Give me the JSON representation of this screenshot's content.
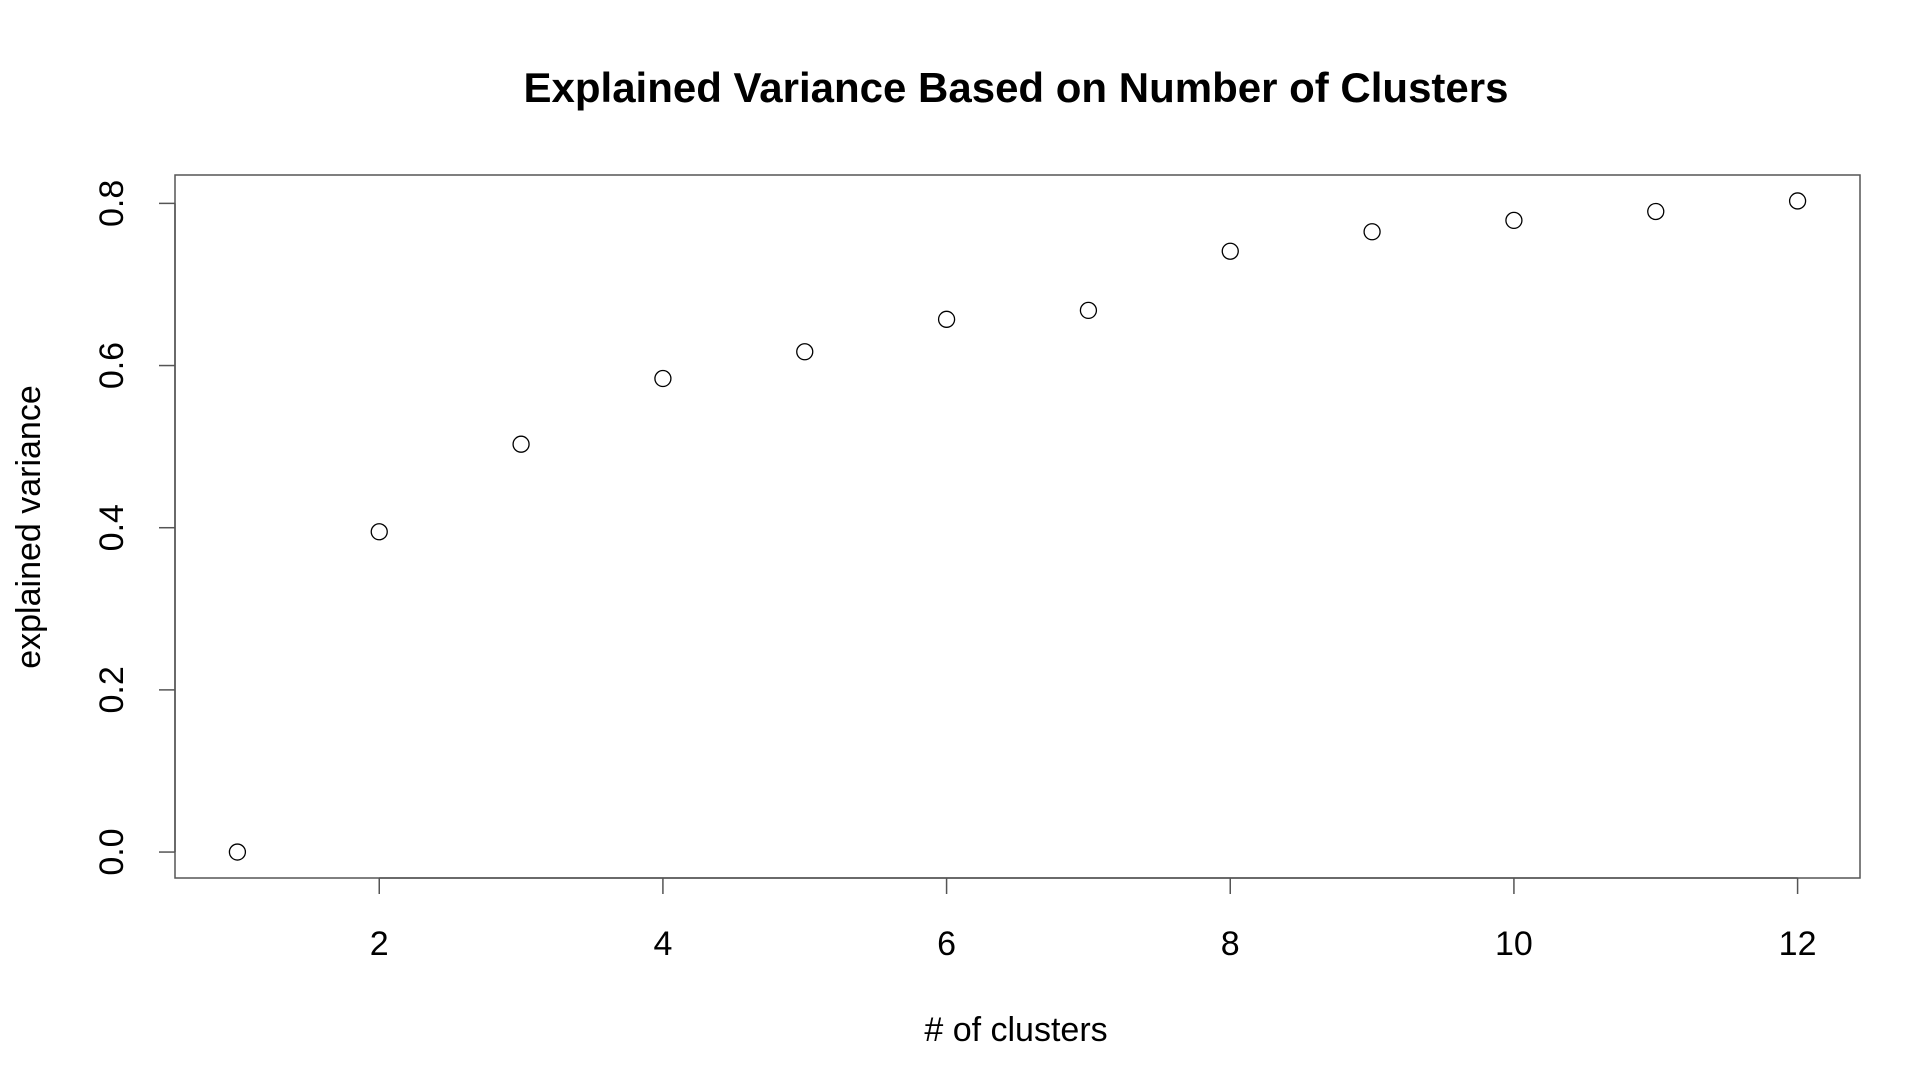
{
  "chart_data": {
    "type": "scatter",
    "title": "Explained Variance Based on Number of Clusters",
    "xlabel": "# of clusters",
    "ylabel": "explained variance",
    "x": [
      1,
      2,
      3,
      4,
      5,
      6,
      7,
      8,
      9,
      10,
      11,
      12
    ],
    "y": [
      0.0,
      0.395,
      0.503,
      0.584,
      0.617,
      0.657,
      0.668,
      0.741,
      0.765,
      0.779,
      0.79,
      0.803
    ],
    "x_ticks": [
      2,
      4,
      6,
      8,
      10,
      12
    ],
    "x_tick_labels": [
      "2",
      "4",
      "6",
      "8",
      "10",
      "12"
    ],
    "y_ticks": [
      0.0,
      0.2,
      0.4,
      0.6,
      0.8
    ],
    "y_tick_labels": [
      "0.0",
      "0.2",
      "0.4",
      "0.6",
      "0.8"
    ],
    "xlim": [
      0.56,
      12.44
    ],
    "ylim": [
      -0.032,
      0.835
    ],
    "grid": false,
    "marker": "open-circle",
    "marker_color": "#000000"
  }
}
